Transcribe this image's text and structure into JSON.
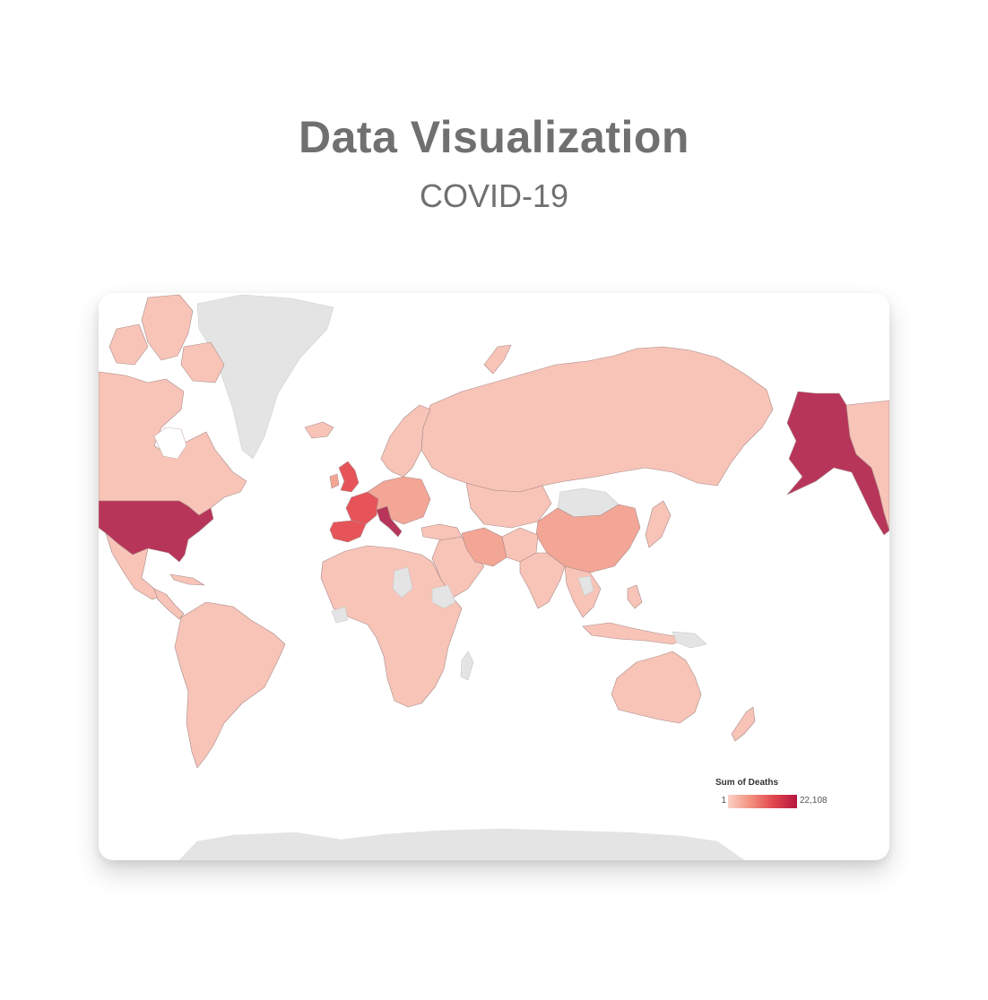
{
  "header": {
    "title": "Data Visualization",
    "subtitle": "COVID-19"
  },
  "map": {
    "legend": {
      "title": "Sum of Deaths",
      "min_label": "1",
      "max_label": "22,108",
      "scale_colors": [
        "#fad1c6",
        "#f28f7c",
        "#e0454e",
        "#b5173f"
      ]
    },
    "colors": {
      "no_data": "#e4e4e4",
      "low": "#f8c4b8",
      "medium": "#f3a696",
      "high": "#e6545a",
      "highest": "#b8355a",
      "border": "#a88a88"
    }
  }
}
